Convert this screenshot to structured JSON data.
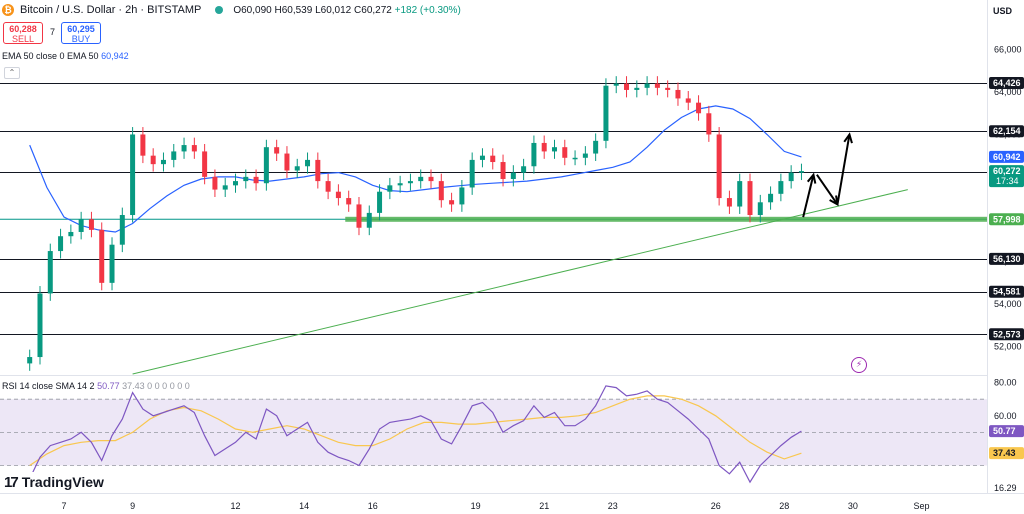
{
  "header": {
    "symbol": "Bitcoin / U.S. Dollar · 2h · BITSTAMP",
    "open": "O60,090",
    "high": "H60,539",
    "low": "L60,012",
    "close": "C60,272",
    "change": "+182 (+0.30%)",
    "currency": "USD"
  },
  "trade": {
    "sell_price": "60,288",
    "sell_label": "SELL",
    "buy_price": "60,295",
    "buy_label": "BUY",
    "spread": "7"
  },
  "indicators": {
    "ema_label": "EMA 50 close 0 EMA 50",
    "ema_value": "60,942",
    "rsi_label": "RSI 14 close SMA 14 2",
    "rsi_value": "50.77",
    "rsi_sma_value": "37.43",
    "rsi_extra": "0 0 0 0 0 0"
  },
  "branding": {
    "logo_text": "TradingView",
    "logo_mark": "17"
  },
  "colors": {
    "up": "#089981",
    "down": "#f23645",
    "ema": "#2962ff",
    "support": "#4caf50",
    "rsi": "#7e57c2",
    "rsi_sma": "#f9c74f",
    "rsi_band": "#ede7f6"
  },
  "chart_data": [
    {
      "type": "line",
      "panel": "price",
      "yticks": [
        "66,000",
        "64,000",
        "62,000",
        "60,000",
        "58,000",
        "56,000",
        "54,000",
        "52,000"
      ],
      "ylim": [
        50700,
        67400
      ],
      "xticks": [
        "7",
        "9",
        "12",
        "14",
        "16",
        "19",
        "21",
        "23",
        "26",
        "28",
        "30",
        "Sep"
      ],
      "horizontal_levels": [
        {
          "value": 64426,
          "label": "64,426"
        },
        {
          "value": 62154,
          "label": "62,154"
        },
        {
          "value": 60226,
          "label": "60,226"
        },
        {
          "value": 56130,
          "label": "56,130"
        },
        {
          "value": 54581,
          "label": "54,581"
        },
        {
          "value": 52573,
          "label": "52,573"
        }
      ],
      "support_level": {
        "value": 57998,
        "label": "57,998"
      },
      "price_tags": [
        {
          "value": 60942,
          "label": "60,942",
          "color": "#2962ff"
        },
        {
          "value": 60272,
          "label": "60,272",
          "sub": "17:34",
          "color": "#089981"
        }
      ],
      "trendline": {
        "from": {
          "x": 9.0,
          "y": 50700
        },
        "to": {
          "x": 31.6,
          "y": 59400
        }
      },
      "projection_arrows": [
        {
          "from": {
            "x": 28.55,
            "y": 58100
          },
          "to": {
            "x": 28.85,
            "y": 60100
          }
        },
        {
          "from": {
            "x": 28.95,
            "y": 60100
          },
          "to": {
            "x": 29.55,
            "y": 58700
          }
        },
        {
          "from": {
            "x": 29.55,
            "y": 58700
          },
          "to": {
            "x": 29.9,
            "y": 62000
          }
        }
      ],
      "series": [
        {
          "name": "price",
          "x": [
            6.0,
            6.3,
            6.6,
            6.9,
            7.2,
            7.5,
            7.8,
            8.1,
            8.4,
            8.7,
            9.0,
            9.3,
            9.6,
            9.9,
            10.2,
            10.5,
            10.8,
            11.1,
            11.4,
            11.7,
            12.0,
            12.3,
            12.6,
            12.9,
            13.2,
            13.5,
            13.8,
            14.1,
            14.4,
            14.7,
            15.0,
            15.3,
            15.6,
            15.9,
            16.2,
            16.5,
            16.8,
            17.1,
            17.4,
            17.7,
            18.0,
            18.3,
            18.6,
            18.9,
            19.2,
            19.5,
            19.8,
            20.1,
            20.4,
            20.7,
            21.0,
            21.3,
            21.6,
            21.9,
            22.2,
            22.5,
            22.8,
            23.1,
            23.4,
            23.7,
            24.0,
            24.3,
            24.6,
            24.9,
            25.2,
            25.5,
            25.8,
            26.1,
            26.4,
            26.7,
            27.0,
            27.3,
            27.6,
            27.9,
            28.2,
            28.5
          ],
          "values": [
            51500,
            54500,
            56500,
            57200,
            57400,
            58000,
            57500,
            55000,
            56800,
            58200,
            62000,
            61000,
            60600,
            60800,
            61200,
            61500,
            61200,
            60000,
            59400,
            59600,
            59800,
            60000,
            59700,
            61400,
            61100,
            60300,
            60500,
            60800,
            59800,
            59300,
            59000,
            58700,
            57600,
            58300,
            59300,
            59600,
            59700,
            59800,
            60000,
            59800,
            58900,
            58700,
            59500,
            60800,
            61000,
            60700,
            59900,
            60200,
            60500,
            61600,
            61200,
            61400,
            60900,
            60900,
            61100,
            61700,
            64300,
            64400,
            64100,
            64200,
            64400,
            64200,
            64100,
            63700,
            63500,
            63000,
            62000,
            59000,
            58600,
            59800,
            58200,
            58800,
            59200,
            59800,
            60200,
            60272
          ]
        },
        {
          "name": "EMA 50",
          "x": [
            6.0,
            6.5,
            7.0,
            7.5,
            8.0,
            8.5,
            9.0,
            9.5,
            10.0,
            10.5,
            11.0,
            11.5,
            12.0,
            12.5,
            13.0,
            13.5,
            14.0,
            14.5,
            15.0,
            15.5,
            16.0,
            16.5,
            17.0,
            17.5,
            18.0,
            18.5,
            19.0,
            19.5,
            20.0,
            20.5,
            21.0,
            21.5,
            22.0,
            22.5,
            23.0,
            23.5,
            24.0,
            24.5,
            25.0,
            25.5,
            26.0,
            26.5,
            27.0,
            27.5,
            28.0,
            28.5
          ],
          "values": [
            61500,
            59500,
            58100,
            57700,
            57500,
            57400,
            57800,
            58500,
            59100,
            59600,
            59900,
            60000,
            60000,
            59850,
            59800,
            59900,
            60000,
            60150,
            60200,
            60000,
            59600,
            59350,
            59300,
            59400,
            59500,
            59580,
            59650,
            59700,
            59750,
            59800,
            59900,
            60000,
            60150,
            60300,
            60450,
            60700,
            61400,
            62200,
            62800,
            63200,
            63350,
            63200,
            62750,
            62000,
            61200,
            60942
          ]
        }
      ]
    },
    {
      "type": "line",
      "panel": "rsi",
      "yticks": [
        "80.00",
        "60.00",
        "37.77",
        "16.29"
      ],
      "ylim": [
        14,
        84
      ],
      "band": [
        30,
        70
      ],
      "rsi_tag": {
        "value": 50.77,
        "label": "50.77"
      },
      "sma_tag": {
        "value": 37.43,
        "label": "37.43"
      },
      "series": [
        {
          "name": "RSI 14",
          "x": [
            6.0,
            6.3,
            6.6,
            6.9,
            7.2,
            7.5,
            7.8,
            8.1,
            8.4,
            8.7,
            9.0,
            9.3,
            9.6,
            9.9,
            10.2,
            10.5,
            10.8,
            11.1,
            11.4,
            11.7,
            12.0,
            12.3,
            12.6,
            12.9,
            13.2,
            13.5,
            13.8,
            14.1,
            14.4,
            14.7,
            15.0,
            15.3,
            15.6,
            15.9,
            16.2,
            16.5,
            16.8,
            17.1,
            17.4,
            17.7,
            18.0,
            18.3,
            18.6,
            18.9,
            19.2,
            19.5,
            19.8,
            20.1,
            20.4,
            20.7,
            21.0,
            21.3,
            21.6,
            21.9,
            22.2,
            22.5,
            22.8,
            23.1,
            23.4,
            23.7,
            24.0,
            24.3,
            24.6,
            24.9,
            25.2,
            25.5,
            25.8,
            26.1,
            26.4,
            26.7,
            27.0,
            27.3,
            27.6,
            27.9,
            28.2,
            28.5
          ],
          "values": [
            22,
            35,
            42,
            44,
            46,
            50,
            44,
            33,
            48,
            58,
            74,
            64,
            60,
            62,
            64,
            66,
            62,
            48,
            36,
            40,
            44,
            50,
            46,
            64,
            60,
            48,
            52,
            56,
            44,
            38,
            35,
            33,
            30,
            40,
            52,
            56,
            57,
            58,
            60,
            57,
            46,
            43,
            54,
            66,
            68,
            62,
            50,
            54,
            57,
            66,
            59,
            62,
            54,
            54,
            58,
            66,
            78,
            77,
            72,
            73,
            75,
            70,
            68,
            63,
            58,
            52,
            46,
            30,
            25,
            32,
            20,
            30,
            36,
            42,
            47,
            50.77
          ]
        },
        {
          "name": "SMA 14",
          "x": [
            6.0,
            6.5,
            7.0,
            7.5,
            8.0,
            8.5,
            9.0,
            9.5,
            10.0,
            10.5,
            11.0,
            11.5,
            12.0,
            12.5,
            13.0,
            13.5,
            14.0,
            14.5,
            15.0,
            15.5,
            16.0,
            16.5,
            17.0,
            17.5,
            18.0,
            18.5,
            19.0,
            19.5,
            20.0,
            20.5,
            21.0,
            21.5,
            22.0,
            22.5,
            23.0,
            23.5,
            24.0,
            24.5,
            25.0,
            25.5,
            26.0,
            26.5,
            27.0,
            27.5,
            28.0,
            28.5
          ],
          "values": [
            30,
            37,
            42,
            44,
            45,
            45,
            50,
            58,
            63,
            65,
            63,
            58,
            52,
            50,
            52,
            54,
            52,
            48,
            44,
            42,
            42,
            46,
            52,
            56,
            56,
            55,
            55,
            56,
            57,
            58,
            59,
            59,
            60,
            62,
            66,
            70,
            72,
            72,
            70,
            66,
            60,
            52,
            44,
            38,
            34,
            37.43
          ]
        }
      ]
    }
  ]
}
